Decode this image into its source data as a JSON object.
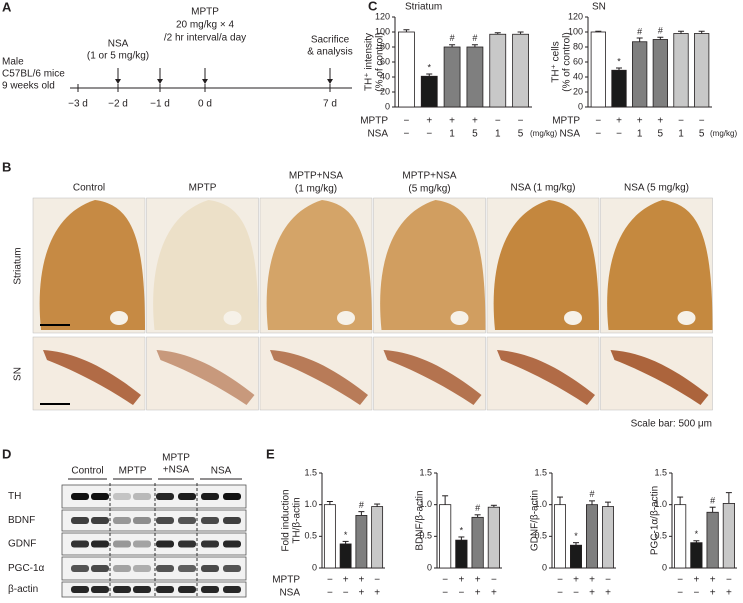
{
  "panel_labels": [
    "A",
    "B",
    "C",
    "D",
    "E"
  ],
  "timeline": {
    "subject": [
      "Male",
      "C57BL/6 mice",
      "9 weeks old"
    ],
    "nsa": [
      "NSA",
      "(1 or 5 mg/kg)"
    ],
    "mptp": [
      "MPTP",
      "20 mg/kg × 4",
      "/2 hr interval/a day"
    ],
    "sacrifice": [
      "Sacrifice",
      "& analysis"
    ],
    "days": [
      "−3 d",
      "−2 d",
      "−1 d",
      "0 d",
      "7 d"
    ]
  },
  "histology": {
    "columns": [
      [
        "Control"
      ],
      [
        "MPTP"
      ],
      [
        "MPTP+NSA",
        "(1 mg/kg)"
      ],
      [
        "MPTP+NSA",
        "(5 mg/kg)"
      ],
      [
        "NSA (1 mg/kg)"
      ],
      [
        "NSA (5 mg/kg)"
      ]
    ],
    "rows": [
      "Striatum",
      "SN"
    ],
    "scale_note": "Scale bar: 500 μm"
  },
  "blot": {
    "groups": [
      [
        "Control"
      ],
      [
        "MPTP"
      ],
      [
        "MPTP",
        "+NSA"
      ],
      [
        "NSA"
      ]
    ],
    "proteins": [
      "TH",
      "BDNF",
      "GDNF",
      "PGC-1α",
      "β-actin"
    ]
  },
  "chart_data": [
    {
      "type": "bar",
      "title": "Striatum",
      "ylabel": [
        "TH⁺ intensity",
        "(% of control)"
      ],
      "values": [
        100,
        41,
        80,
        80,
        97,
        97
      ],
      "errors": [
        3,
        3,
        3,
        3,
        2,
        3
      ],
      "colors": [
        "#ffffff",
        "#1a1a1a",
        "#7f7f7f",
        "#7f7f7f",
        "#c8c8c8",
        "#c8c8c8"
      ],
      "annotations": [
        null,
        "*",
        "#",
        "#",
        null,
        null
      ],
      "ylim": [
        0,
        120
      ],
      "yticks": [
        0,
        20,
        40,
        60,
        80,
        100,
        120
      ],
      "conditions": [
        {
          "label": "MPTP",
          "values": [
            "−",
            "+",
            "+",
            "+",
            "−",
            "−"
          ]
        },
        {
          "label": "NSA",
          "values": [
            "−",
            "−",
            "1",
            "5",
            "1",
            "5"
          ]
        }
      ],
      "unit_note": "(mg/kg)"
    },
    {
      "type": "bar",
      "title": "SN",
      "ylabel": [
        "TH⁺ cells",
        "(% of control)"
      ],
      "values": [
        100,
        49,
        87,
        90,
        98,
        98
      ],
      "errors": [
        1,
        3,
        5,
        3,
        3,
        3
      ],
      "colors": [
        "#ffffff",
        "#1a1a1a",
        "#7f7f7f",
        "#7f7f7f",
        "#c8c8c8",
        "#c8c8c8"
      ],
      "annotations": [
        null,
        "*",
        "#",
        "#",
        null,
        null
      ],
      "ylim": [
        0,
        120
      ],
      "yticks": [
        0,
        20,
        40,
        60,
        80,
        100,
        120
      ],
      "conditions": [
        {
          "label": "MPTP",
          "values": [
            "−",
            "+",
            "+",
            "+",
            "−",
            "−"
          ]
        },
        {
          "label": "NSA",
          "values": [
            "−",
            "−",
            "1",
            "5",
            "1",
            "5"
          ]
        }
      ],
      "unit_note": "(mg/kg)"
    },
    {
      "type": "bar",
      "ylabel": [
        "Fold induction",
        "TH/β-actin"
      ],
      "values": [
        1.0,
        0.38,
        0.83,
        0.97
      ],
      "errors": [
        0.05,
        0.04,
        0.06,
        0.04
      ],
      "colors": [
        "#ffffff",
        "#1a1a1a",
        "#7f7f7f",
        "#c8c8c8"
      ],
      "annotations": [
        null,
        "*",
        "#",
        null
      ],
      "ylim": [
        0,
        1.5
      ],
      "yticks": [
        0,
        0.5,
        {
          "value": 1,
          "label": "1.0"
        },
        1.5
      ],
      "conditions": [
        {
          "label": "MPTP",
          "values": [
            "−",
            "+",
            "+",
            "−"
          ]
        },
        {
          "label": "NSA",
          "values": [
            "−",
            "−",
            "+",
            "+"
          ]
        }
      ]
    },
    {
      "type": "bar",
      "ylabel": [
        "BDNF/β-actin"
      ],
      "values": [
        1.0,
        0.44,
        0.8,
        0.96
      ],
      "errors": [
        0.14,
        0.05,
        0.04,
        0.03
      ],
      "colors": [
        "#ffffff",
        "#1a1a1a",
        "#7f7f7f",
        "#c8c8c8"
      ],
      "annotations": [
        null,
        "*",
        "#",
        null
      ],
      "ylim": [
        0,
        1.5
      ],
      "yticks": [
        0,
        0.5,
        {
          "value": 1,
          "label": "1.0"
        },
        1.5
      ],
      "conditions": [
        {
          "values": [
            "−",
            "+",
            "+",
            "−"
          ]
        },
        {
          "values": [
            "−",
            "−",
            "+",
            "+"
          ]
        }
      ]
    },
    {
      "type": "bar",
      "ylabel": [
        "GDNF/β-actin"
      ],
      "values": [
        1.0,
        0.36,
        1.0,
        0.97
      ],
      "errors": [
        0.12,
        0.04,
        0.06,
        0.07
      ],
      "colors": [
        "#ffffff",
        "#1a1a1a",
        "#7f7f7f",
        "#c8c8c8"
      ],
      "annotations": [
        null,
        "*",
        "#",
        null
      ],
      "ylim": [
        0,
        1.5
      ],
      "yticks": [
        0,
        0.5,
        {
          "value": 1,
          "label": "1.0"
        },
        1.5
      ],
      "conditions": [
        {
          "values": [
            "−",
            "+",
            "+",
            "−"
          ]
        },
        {
          "values": [
            "−",
            "−",
            "+",
            "+"
          ]
        }
      ]
    },
    {
      "type": "bar",
      "ylabel": [
        "PGC-1α/β-actin"
      ],
      "values": [
        1.0,
        0.4,
        0.88,
        1.02
      ],
      "errors": [
        0.12,
        0.03,
        0.08,
        0.17
      ],
      "colors": [
        "#ffffff",
        "#1a1a1a",
        "#7f7f7f",
        "#c8c8c8"
      ],
      "annotations": [
        null,
        "*",
        "#",
        null
      ],
      "ylim": [
        0,
        1.5
      ],
      "yticks": [
        0,
        0.5,
        {
          "value": 1,
          "label": "1.0"
        },
        1.5
      ],
      "conditions": [
        {
          "values": [
            "−",
            "+",
            "+",
            "−"
          ]
        },
        {
          "values": [
            "−",
            "−",
            "+",
            "+"
          ]
        }
      ]
    }
  ]
}
